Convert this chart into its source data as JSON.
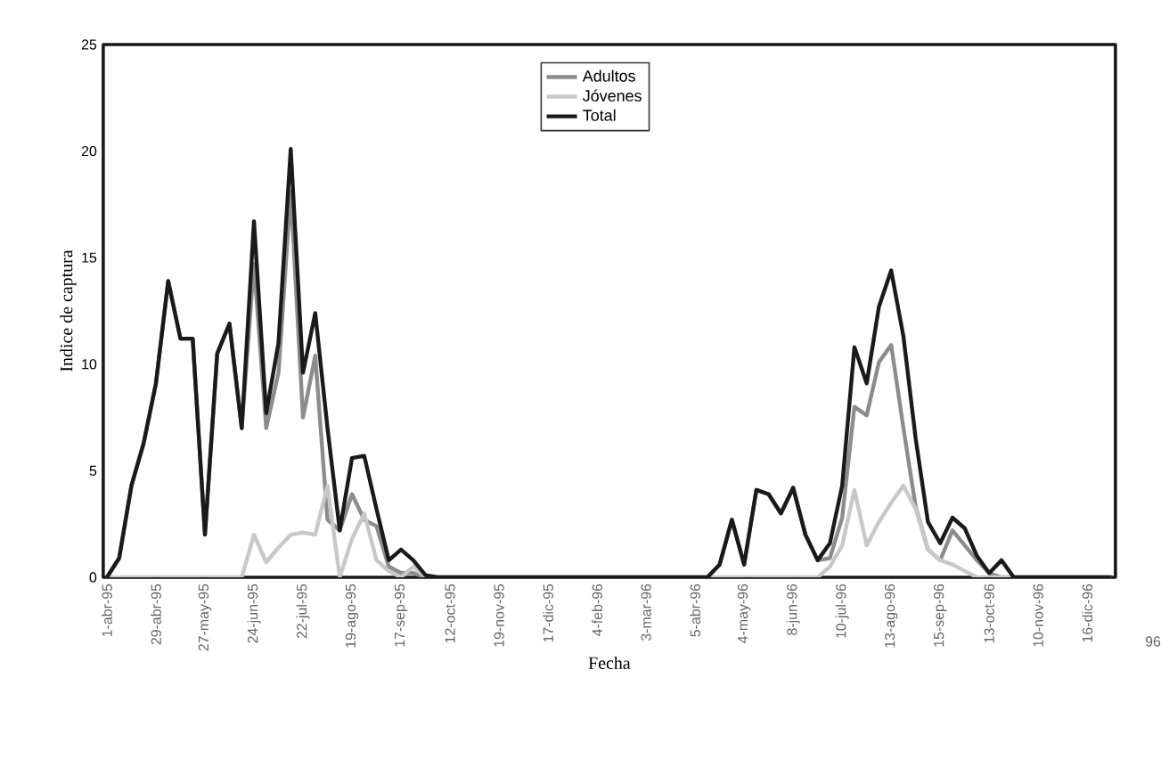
{
  "chart_data": {
    "type": "line",
    "xlabel": "Fecha",
    "ylabel": "Indice de captura",
    "categories": [
      "1-abr-95",
      null,
      null,
      null,
      "29-abr-95",
      null,
      null,
      null,
      "27-may-95",
      null,
      null,
      null,
      "24-jun-95",
      null,
      null,
      null,
      "22-jul-95",
      null,
      null,
      null,
      "19-ago-95",
      null,
      null,
      null,
      "17-sep-95",
      null,
      null,
      null,
      "12-oct-95",
      null,
      null,
      null,
      "19-nov-95",
      null,
      null,
      null,
      "17-dic-95",
      null,
      null,
      null,
      "4-feb-96",
      null,
      null,
      null,
      "3-mar-96",
      null,
      null,
      null,
      "5-abr-96",
      null,
      null,
      null,
      "4-may-96",
      null,
      null,
      null,
      "8-jun-96",
      null,
      null,
      null,
      "10-jul-96",
      null,
      null,
      null,
      "13-ago-96",
      null,
      null,
      null,
      "15-sep-96",
      null,
      null,
      null,
      "13-oct-96",
      null,
      null,
      null,
      "10-nov-96",
      null,
      null,
      null,
      "16-dic-96",
      null,
      null
    ],
    "series": [
      {
        "name": "Adultos",
        "color": "#8c8c8c",
        "values": [
          0,
          0.9,
          4.3,
          6.3,
          9.1,
          13.9,
          11.2,
          11.2,
          2.0,
          10.5,
          11.9,
          7.0,
          14.7,
          7.0,
          9.6,
          18.1,
          7.5,
          10.4,
          2.7,
          2.2,
          3.9,
          2.7,
          2.4,
          0.5,
          0.2,
          0.2,
          0,
          0,
          0,
          0,
          0,
          0,
          0,
          0,
          0,
          0,
          0,
          0,
          0,
          0,
          0,
          0,
          0,
          0,
          0,
          0,
          0,
          0,
          0,
          0,
          0.6,
          2.7,
          0.6,
          4.1,
          3.9,
          3.0,
          4.2,
          2.0,
          0.8,
          0.9,
          2.8,
          8.0,
          7.6,
          10.1,
          10.9,
          7.0,
          3.3,
          1.3,
          0.8,
          2.2,
          1.5,
          0.8,
          0.2,
          0,
          0,
          0,
          0,
          0,
          0,
          0,
          0,
          0,
          0
        ]
      },
      {
        "name": "Jóvenes",
        "color": "#c8c8c8",
        "values": [
          0,
          0,
          0,
          0,
          0,
          0,
          0,
          0,
          0,
          0,
          0,
          0,
          2.0,
          0.7,
          1.4,
          2.0,
          2.1,
          2.0,
          4.3,
          0,
          1.8,
          3.0,
          0.8,
          0.3,
          0,
          0.5,
          0,
          0,
          0,
          0,
          0,
          0,
          0,
          0,
          0,
          0,
          0,
          0,
          0,
          0,
          0,
          0,
          0,
          0,
          0,
          0,
          0,
          0,
          0,
          0,
          0,
          0,
          0,
          0,
          0,
          0,
          0,
          0,
          0,
          0.5,
          1.5,
          4.1,
          1.5,
          2.6,
          3.5,
          4.3,
          3.2,
          1.3,
          0.8,
          0.6,
          0.3,
          0,
          0,
          0,
          0,
          0,
          0,
          0,
          0,
          0,
          0,
          0,
          0
        ]
      },
      {
        "name": "Total",
        "color": "#1a1a1a",
        "values": [
          0,
          0.9,
          4.3,
          6.3,
          9.1,
          13.9,
          11.2,
          11.2,
          2.0,
          10.5,
          11.9,
          7.0,
          16.7,
          7.7,
          11.0,
          20.1,
          9.6,
          12.4,
          7.0,
          2.2,
          5.6,
          5.7,
          3.2,
          0.8,
          1.3,
          0.8,
          0.1,
          0,
          0,
          0,
          0,
          0,
          0,
          0,
          0,
          0,
          0,
          0,
          0,
          0,
          0,
          0,
          0,
          0,
          0,
          0,
          0,
          0,
          0,
          0,
          0.6,
          2.7,
          0.6,
          4.1,
          3.9,
          3.0,
          4.2,
          2.0,
          0.8,
          1.6,
          4.3,
          10.8,
          9.1,
          12.7,
          14.4,
          11.3,
          6.5,
          2.6,
          1.6,
          2.8,
          2.3,
          1.0,
          0.2,
          0.8,
          0,
          0,
          0,
          0,
          0,
          0,
          0,
          0,
          0
        ]
      }
    ],
    "ylim": [
      0,
      25
    ],
    "yticks": [
      0,
      5,
      10,
      15,
      20,
      25
    ],
    "grid": false,
    "legend": "top",
    "marker": "none",
    "line_style": "solid",
    "annotations": [
      "96"
    ]
  }
}
